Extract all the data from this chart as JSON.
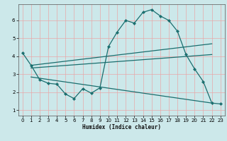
{
  "background_color": "#cce8ea",
  "grid_color": "#e8a8a8",
  "line_color": "#1a6e6e",
  "xlabel": "Humidex (Indice chaleur)",
  "xlim": [
    -0.5,
    23.5
  ],
  "ylim": [
    0.7,
    6.9
  ],
  "yticks": [
    1,
    2,
    3,
    4,
    5,
    6
  ],
  "xticks": [
    0,
    1,
    2,
    3,
    4,
    5,
    6,
    7,
    8,
    9,
    10,
    11,
    12,
    13,
    14,
    15,
    16,
    17,
    18,
    19,
    20,
    21,
    22,
    23
  ],
  "curve1_x": [
    0,
    1,
    2,
    3,
    4,
    5,
    6,
    7,
    8,
    9,
    10,
    11,
    12,
    13,
    14,
    15,
    16,
    17,
    18,
    19,
    20,
    21,
    22,
    23
  ],
  "curve1_y": [
    4.2,
    3.5,
    2.7,
    2.5,
    2.45,
    1.9,
    1.65,
    2.2,
    1.95,
    2.25,
    4.55,
    5.35,
    6.0,
    5.85,
    6.45,
    6.6,
    6.25,
    6.0,
    5.4,
    4.1,
    3.3,
    2.6,
    1.4,
    1.35
  ],
  "curve2_x": [
    1,
    22
  ],
  "curve2_y": [
    3.5,
    4.7
  ],
  "curve3_x": [
    1,
    22
  ],
  "curve3_y": [
    3.35,
    4.1
  ],
  "curve4_x": [
    1,
    22
  ],
  "curve4_y": [
    2.85,
    1.4
  ]
}
